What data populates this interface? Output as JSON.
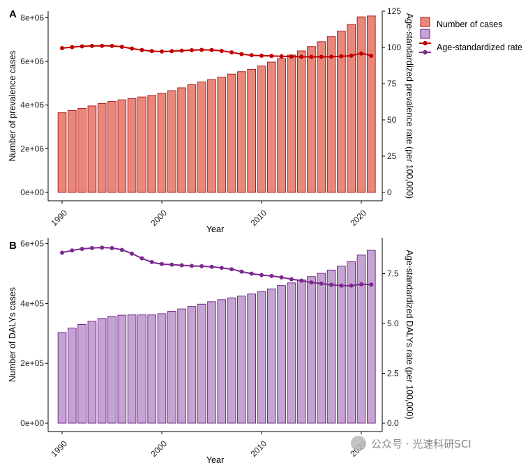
{
  "legend": {
    "bar_label": "Number of cases",
    "line_label": "Age-standardized rate"
  },
  "watermark": {
    "text": "公众号 · 光速科研SCI"
  },
  "chart_data": [
    {
      "panel": "A",
      "type": "bar+line",
      "x": [
        1990,
        1991,
        1992,
        1993,
        1994,
        1995,
        1996,
        1997,
        1998,
        1999,
        2000,
        2001,
        2002,
        2003,
        2004,
        2005,
        2006,
        2007,
        2008,
        2009,
        2010,
        2011,
        2012,
        2013,
        2014,
        2015,
        2016,
        2017,
        2018,
        2019,
        2020,
        2021
      ],
      "xlabel": "Year",
      "xticks": [
        1990,
        2000,
        2010,
        2020
      ],
      "bars": {
        "name": "Number of cases",
        "ylabel": "Number of prevalence cases",
        "ylim": [
          0,
          8300000
        ],
        "yticks": [
          0,
          2000000,
          4000000,
          6000000,
          8000000
        ],
        "yticklabels": [
          "0e+00",
          "2e+06",
          "4e+06",
          "6e+06",
          "8e+06"
        ],
        "values": [
          3650000,
          3750000,
          3850000,
          3960000,
          4070000,
          4170000,
          4240000,
          4300000,
          4370000,
          4440000,
          4540000,
          4660000,
          4790000,
          4930000,
          5060000,
          5170000,
          5280000,
          5420000,
          5530000,
          5640000,
          5790000,
          5970000,
          6130000,
          6290000,
          6480000,
          6680000,
          6900000,
          7130000,
          7390000,
          7690000,
          8040000,
          8080000
        ],
        "fill": "#e8877a",
        "stroke": "#b01010"
      },
      "line": {
        "name": "Age-standardized rate",
        "ylabel": "Age-standardized prevalence rate (per 100,000)",
        "ylim": [
          0,
          125
        ],
        "yticks": [
          0,
          25,
          50,
          75,
          100,
          125
        ],
        "values": [
          99.5,
          100.2,
          100.7,
          101.0,
          101.1,
          101.0,
          100.4,
          99.2,
          98.2,
          97.5,
          97.2,
          97.4,
          97.8,
          98.1,
          98.3,
          98.2,
          97.6,
          96.6,
          95.4,
          94.6,
          94.3,
          94.1,
          93.9,
          93.7,
          93.5,
          93.5,
          93.5,
          93.6,
          93.9,
          94.3,
          95.8,
          94.2
        ],
        "color": "#c00000"
      }
    },
    {
      "panel": "B",
      "type": "bar+line",
      "x": [
        1990,
        1991,
        1992,
        1993,
        1994,
        1995,
        1996,
        1997,
        1998,
        1999,
        2000,
        2001,
        2002,
        2003,
        2004,
        2005,
        2006,
        2007,
        2008,
        2009,
        2010,
        2011,
        2012,
        2013,
        2014,
        2015,
        2016,
        2017,
        2018,
        2019,
        2020,
        2021
      ],
      "xlabel": "Year",
      "xticks": [
        1990,
        2000,
        2010,
        2020
      ],
      "bars": {
        "name": "Number of cases",
        "ylabel": "Number of DALYs cases",
        "ylim": [
          0,
          620000
        ],
        "yticks": [
          0,
          200000,
          400000,
          600000
        ],
        "yticklabels": [
          "0e+00",
          "2e+05",
          "4e+05",
          "6e+05"
        ],
        "values": [
          303000,
          318000,
          330000,
          341000,
          350000,
          357000,
          361000,
          362000,
          362000,
          362000,
          366000,
          374000,
          382000,
          390000,
          398000,
          406000,
          413000,
          419000,
          425000,
          432000,
          440000,
          449000,
          460000,
          469000,
          479000,
          490000,
          501000,
          512000,
          525000,
          540000,
          562000,
          578000
        ],
        "fill": "#c5a3d2",
        "stroke": "#6a1a8a"
      },
      "line": {
        "name": "Age-standardized rate",
        "ylabel": "Age-standardized DALYs rate (per 100,000)",
        "ylim": [
          0,
          9.3
        ],
        "yticks": [
          0,
          2.5,
          5.0,
          7.5
        ],
        "yticklabels": [
          "0.0",
          "2.5",
          "5.0",
          "7.5"
        ],
        "values": [
          8.55,
          8.66,
          8.74,
          8.78,
          8.8,
          8.78,
          8.69,
          8.5,
          8.27,
          8.08,
          7.98,
          7.95,
          7.92,
          7.89,
          7.87,
          7.84,
          7.79,
          7.72,
          7.6,
          7.5,
          7.43,
          7.38,
          7.31,
          7.22,
          7.15,
          7.06,
          7.0,
          6.94,
          6.9,
          6.9,
          6.96,
          6.95
        ],
        "color": "#7b2a8e"
      }
    }
  ]
}
